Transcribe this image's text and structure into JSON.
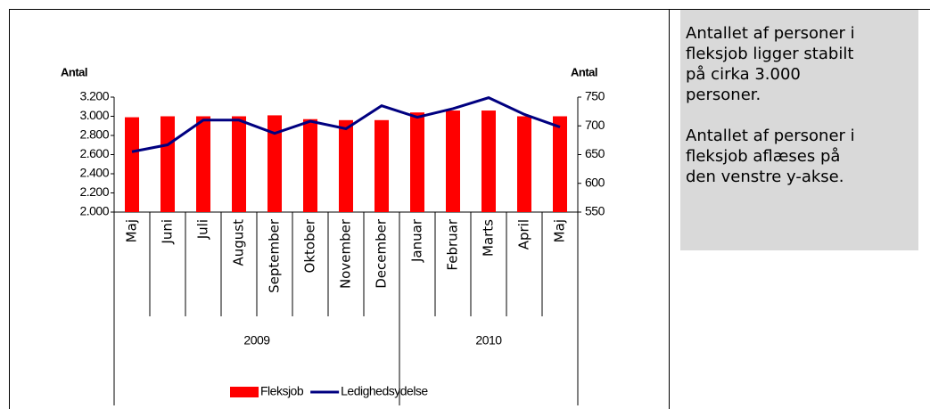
{
  "chart_data": {
    "type": "bar",
    "y_label": "Antal",
    "y2_label": "Antal",
    "categories": [
      "Maj",
      "Juni",
      "Juli",
      "August",
      "September",
      "Oktober",
      "November",
      "December",
      "Januar",
      "Februar",
      "Marts",
      "April",
      "Maj"
    ],
    "year_labels": [
      "2009",
      null,
      null,
      null,
      null,
      null,
      null,
      null,
      "2010",
      null,
      null,
      null,
      null
    ],
    "series": [
      {
        "name": "Fleksjob",
        "type": "bar",
        "color": "#ff0000",
        "values": [
          2990,
          3000,
          3000,
          3000,
          3010,
          2970,
          2960,
          2960,
          3040,
          3060,
          3060,
          3000,
          3000
        ]
      },
      {
        "name": "Ledighedsydelse",
        "type": "line",
        "axis": "y2",
        "color": "#000080",
        "values": [
          655,
          667,
          710,
          710,
          687,
          708,
          695,
          735,
          715,
          730,
          749,
          720,
          698
        ]
      }
    ],
    "ylim": [
      2000,
      3200
    ],
    "yticks": [
      {
        "value": 2000,
        "label": "2.000"
      },
      {
        "value": 2200,
        "label": "2.200"
      },
      {
        "value": 2400,
        "label": "2.400"
      },
      {
        "value": 2600,
        "label": "2.600"
      },
      {
        "value": 2800,
        "label": "2.800"
      },
      {
        "value": 3000,
        "label": "3.000"
      },
      {
        "value": 3200,
        "label": "3.200"
      }
    ],
    "y2lim": [
      550,
      750
    ],
    "y2ticks": [
      550,
      600,
      650,
      700,
      750
    ],
    "legend": "bottom"
  },
  "panel": {
    "paragraphs": [
      [
        "Antallet af personer i",
        "fleksjob ligger stabilt",
        "på cirka 3.000",
        "personer."
      ],
      [
        "Antallet af personer i",
        "fleksjob aflæses på",
        "den venstre y-akse."
      ]
    ]
  }
}
